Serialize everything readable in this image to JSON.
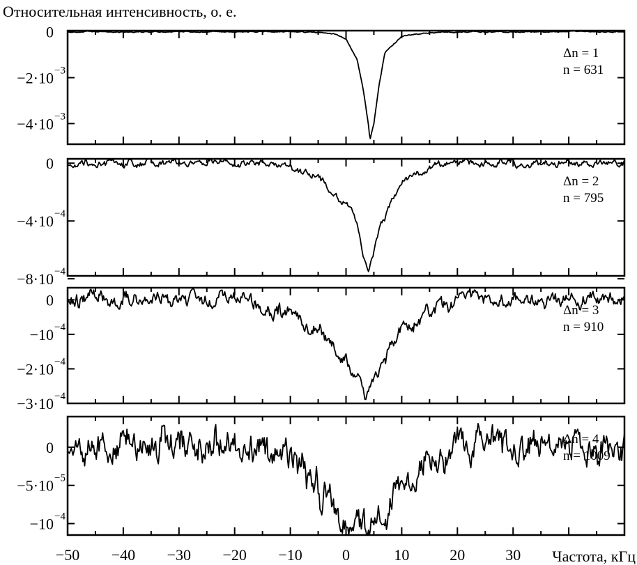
{
  "chart_data": {
    "type": "line",
    "ylabel": "Относительная интенсивность, о. е.",
    "xlabel": "Частота, кГц",
    "x_range": [
      -50,
      50
    ],
    "x_tick_values": [
      -50,
      -40,
      -30,
      -20,
      -10,
      0,
      10,
      20,
      30
    ],
    "x_tick_labels": [
      "−50",
      "−40",
      "−30",
      "−20",
      "−10",
      "0",
      "10",
      "20",
      "30"
    ],
    "grid": false,
    "panels": [
      {
        "ylim": [
          -0.0049,
          5e-05
        ],
        "y_ticks": [
          {
            "value": 0,
            "mantissa": "0",
            "exponent": ""
          },
          {
            "value": -0.002,
            "mantissa": "−2·10",
            "exponent": "−3"
          },
          {
            "value": -0.004,
            "mantissa": "−4·10",
            "exponent": "−3"
          }
        ],
        "annotation": [
          "Δn = 1",
          "n = 631"
        ],
        "dip": {
          "center": 4.3,
          "depth": -0.0047,
          "noise": 2e-05
        },
        "series": [
          {
            "x": [
              -50,
              -40,
              -30,
              -20,
              -10,
              -5,
              -2,
              0,
              2,
              3,
              4,
              4.3,
              5,
              6,
              7,
              10,
              15,
              20,
              30,
              40,
              50
            ],
            "y": [
              0,
              0,
              0,
              0,
              0,
              -3e-05,
              -0.0001,
              -0.0003,
              -0.0012,
              -0.0024,
              -0.004,
              -0.0047,
              -0.004,
              -0.0022,
              -0.0009,
              -0.0002,
              -4e-05,
              0,
              0,
              0,
              0
            ]
          }
        ]
      },
      {
        "ylim": [
          -0.00078,
          3e-05
        ],
        "y_ticks": [
          {
            "value": 0,
            "mantissa": "0",
            "exponent": ""
          },
          {
            "value": -0.0004,
            "mantissa": "−4·10",
            "exponent": "−4"
          },
          {
            "value": -0.0008,
            "mantissa": "−8·10",
            "exponent": "−4"
          }
        ],
        "annotation": [
          "Δn = 2",
          "n = 795"
        ],
        "dip": {
          "center": 4.0,
          "depth": -0.00075,
          "noise": 2e-05
        },
        "series": [
          {
            "x": [
              -50,
              -30,
              -20,
              -10,
              -5,
              0,
              2,
              3,
              4,
              5,
              6,
              8,
              10,
              15,
              20,
              30,
              50
            ],
            "y": [
              0,
              0,
              0,
              -2e-05,
              -0.0001,
              -0.0003,
              -0.0004,
              -0.0006,
              -0.00075,
              -0.0006,
              -0.00045,
              -0.0003,
              -0.00015,
              -2e-05,
              0,
              0,
              0
            ]
          }
        ]
      },
      {
        "ylim": [
          -0.0003,
          3.5e-05
        ],
        "y_ticks": [
          {
            "value": 0,
            "mantissa": "0",
            "exponent": ""
          },
          {
            "value": -0.0001,
            "mantissa": "−10",
            "exponent": "−4"
          },
          {
            "value": -0.0002,
            "mantissa": "−2·10",
            "exponent": "−4"
          },
          {
            "value": -0.0003,
            "mantissa": "−3·10",
            "exponent": "−4"
          }
        ],
        "annotation": [
          "Δn = 3",
          "n = 910"
        ],
        "dip": {
          "center": 3.5,
          "depth": -0.00028,
          "noise": 1.8e-05
        },
        "series": [
          {
            "x": [
              -50,
              -30,
              -20,
              -10,
              -5,
              0,
              2,
              3.5,
              5,
              8,
              10,
              15,
              20,
              30,
              50
            ],
            "y": [
              0,
              0,
              0,
              -4e-05,
              -9e-05,
              -0.00018,
              -0.00024,
              -0.00028,
              -0.00024,
              -0.00015,
              -9e-05,
              -3e-05,
              0,
              0,
              0
            ]
          }
        ]
      },
      {
        "ylim": [
          -0.000115,
          4e-05
        ],
        "y_ticks": [
          {
            "value": 0,
            "mantissa": "0",
            "exponent": ""
          },
          {
            "value": -5e-05,
            "mantissa": "−5·10",
            "exponent": "−5"
          },
          {
            "value": -0.0001,
            "mantissa": "−10",
            "exponent": "−4"
          }
        ],
        "annotation": [
          "Δn = 4",
          "n = 1009"
        ],
        "dip": {
          "center": 3.0,
          "depth": -9.5e-05,
          "noise": 1.8e-05
        },
        "series": [
          {
            "x": [
              -50,
              -30,
              -20,
              -10,
              -5,
              0,
              3,
              5,
              10,
              15,
              20,
              30,
              50
            ],
            "y": [
              0,
              0,
              0,
              -2e-05,
              -5e-05,
              -0.0001,
              -9e-05,
              -0.0001,
              -4e-05,
              -2e-05,
              0,
              0,
              0
            ]
          }
        ]
      }
    ]
  }
}
